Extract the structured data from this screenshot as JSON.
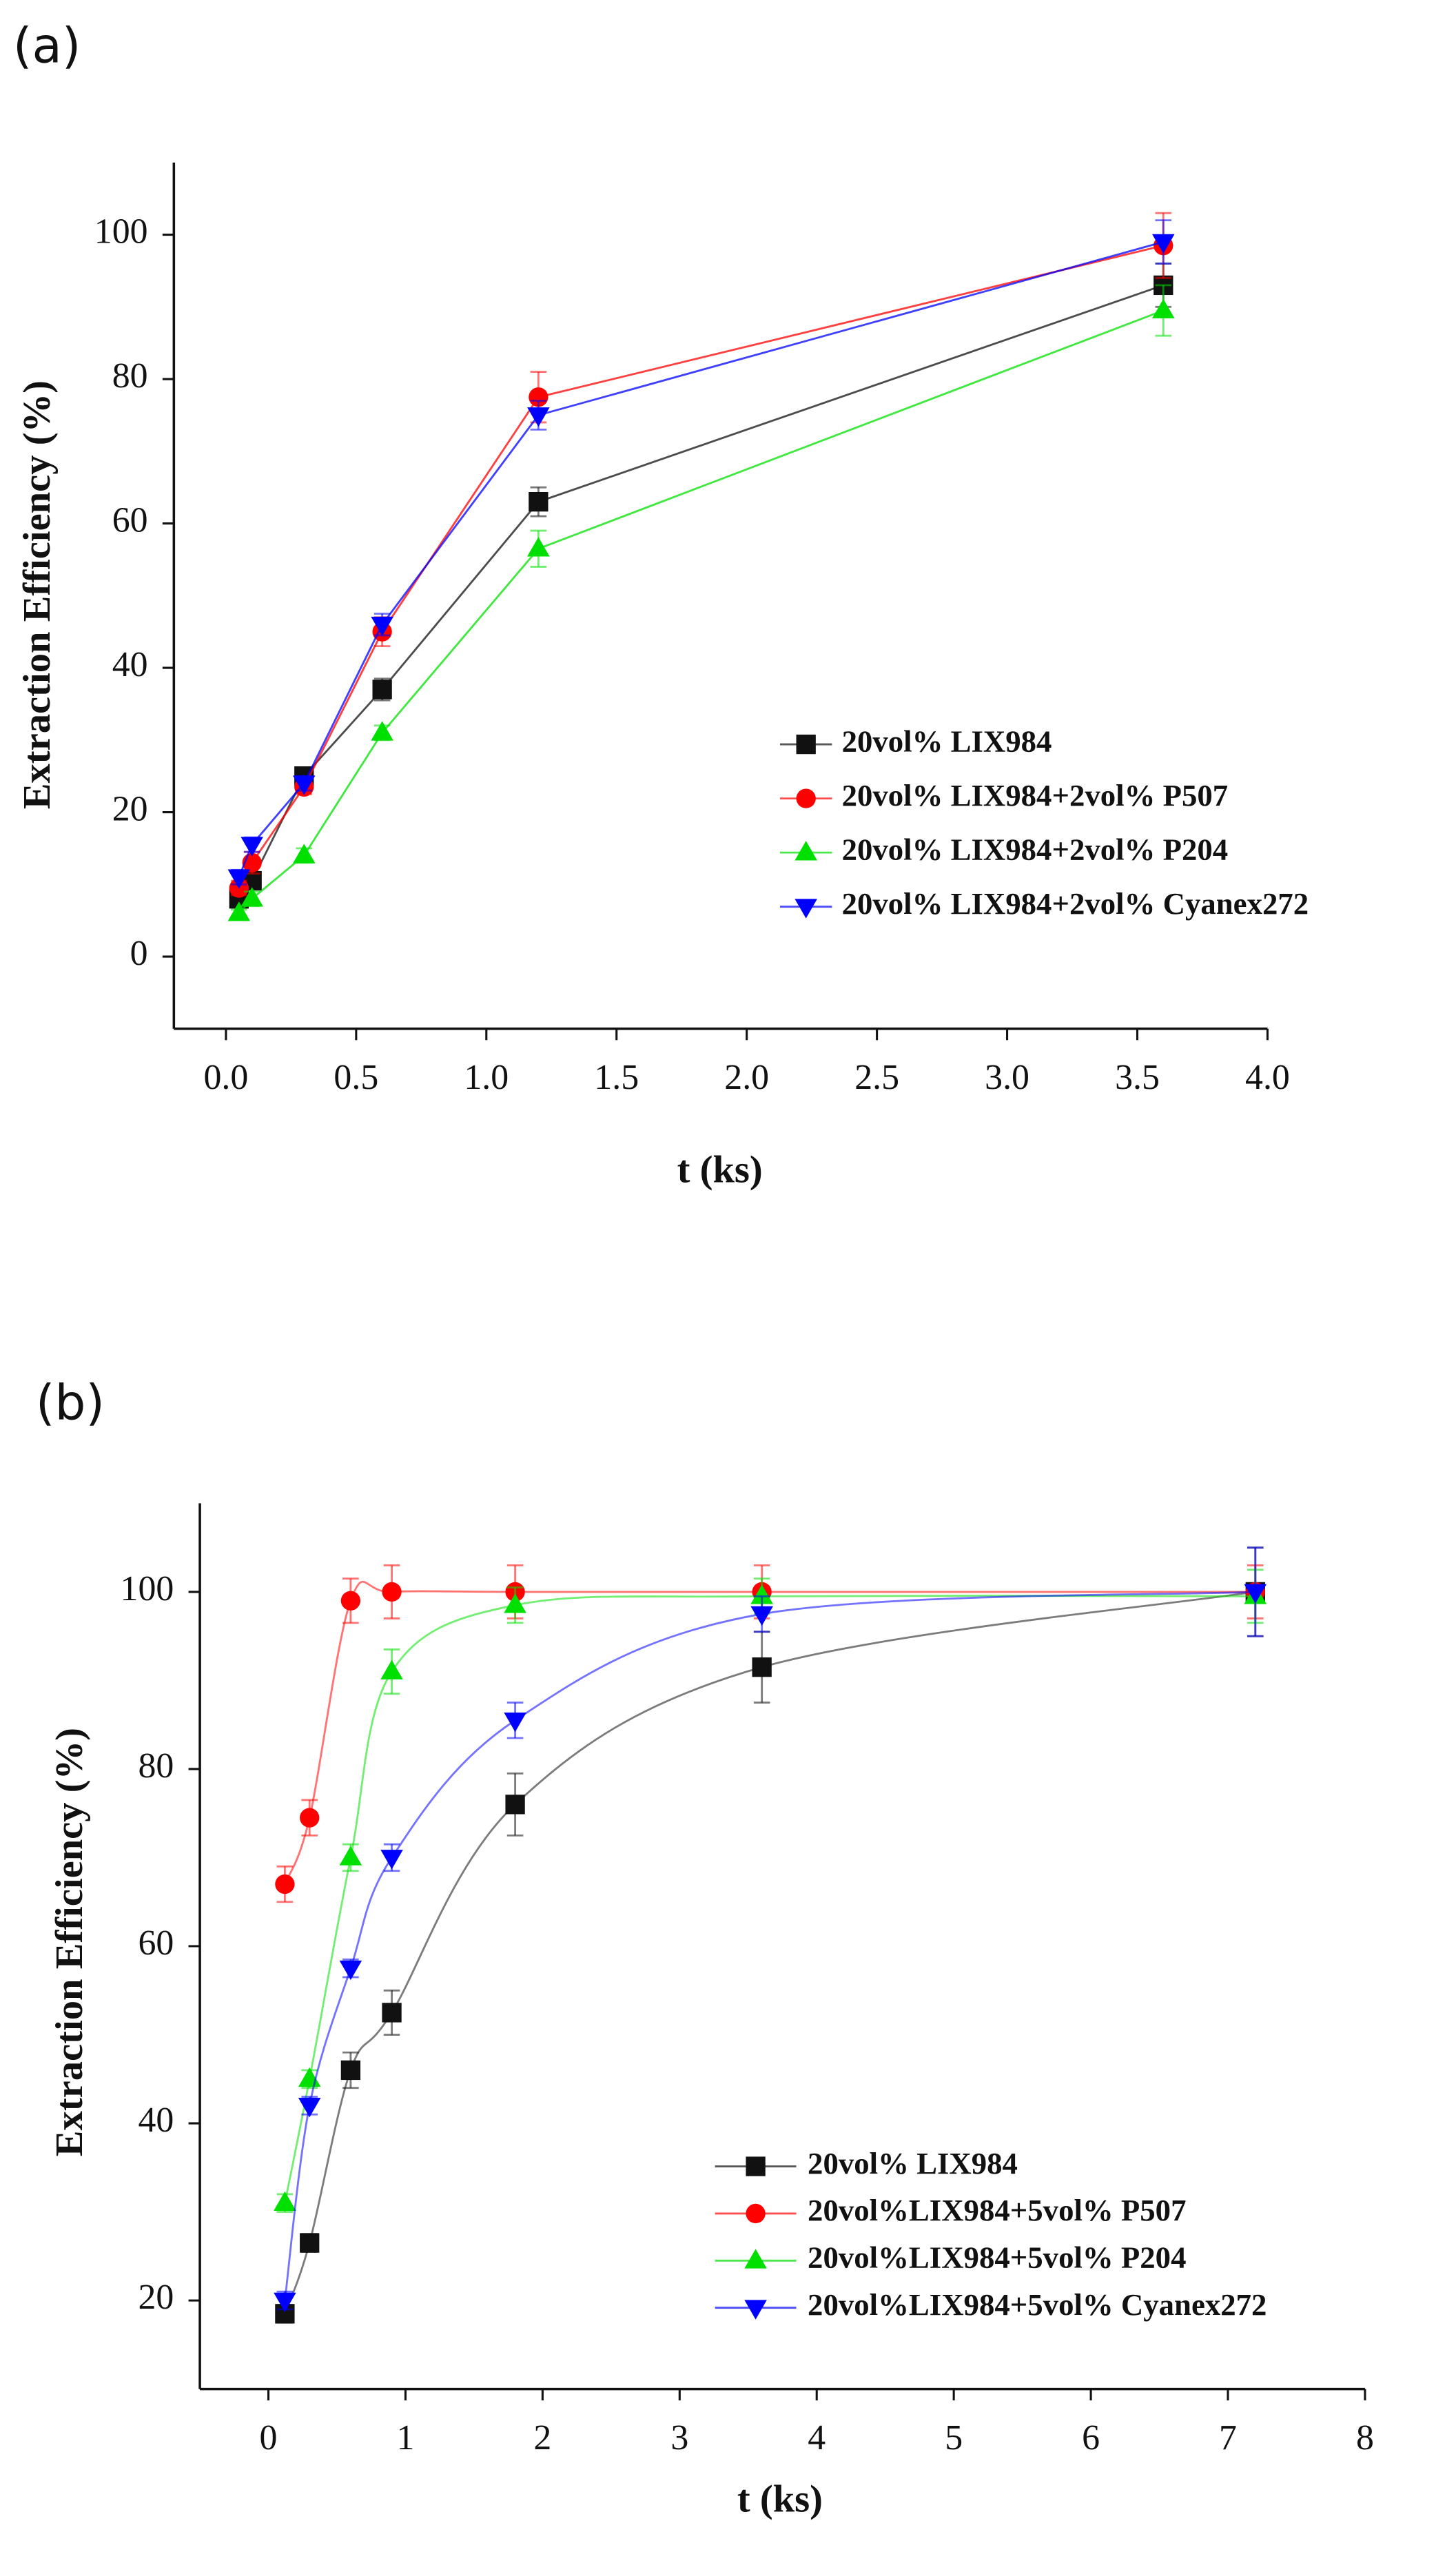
{
  "chart_data": [
    {
      "type": "line",
      "panel_label": "(a)",
      "x_label": "t (ks)",
      "y_label": "Extraction Efficiency (%)",
      "x": [
        0.05,
        0.1,
        0.3,
        0.6,
        1.2,
        3.6
      ],
      "series": [
        {
          "name": "20vol% LIX984",
          "color": "#111111",
          "marker": "square",
          "values": [
            8,
            10.5,
            25,
            37,
            63,
            93
          ],
          "errors": [
            1,
            1,
            1,
            1.5,
            2,
            3
          ]
        },
        {
          "name": "20vol% LIX984+2vol% P507",
          "color": "#ff0000",
          "marker": "circle",
          "values": [
            9.5,
            13,
            23.5,
            45,
            77.5,
            98.5
          ],
          "errors": [
            1,
            1.5,
            1,
            2,
            3.5,
            4.5
          ]
        },
        {
          "name": "20vol% LIX984+2vol% P204",
          "color": "#00e000",
          "marker": "triangle-up",
          "values": [
            6,
            8,
            14,
            31,
            56.5,
            89.5
          ],
          "errors": [
            0.5,
            1,
            1,
            1,
            2.5,
            3.5
          ]
        },
        {
          "name": "20vol% LIX984+2vol% Cyanex272",
          "color": "#0000ff",
          "marker": "triangle-down",
          "values": [
            11,
            15.5,
            24,
            46,
            75,
            99
          ],
          "errors": [
            1,
            1,
            1,
            1.5,
            2,
            3
          ]
        }
      ],
      "xlim": [
        -0.2,
        4.0
      ],
      "xticks": [
        {
          "value": 0,
          "label": "0.0"
        },
        {
          "value": 0.5,
          "label": "0.5"
        },
        {
          "value": 1,
          "label": "1.0"
        },
        {
          "value": 1.5,
          "label": "1.5"
        },
        {
          "value": 2,
          "label": "2.0"
        },
        {
          "value": 2.5,
          "label": "2.5"
        },
        {
          "value": 3,
          "label": "3.0"
        },
        {
          "value": 3.5,
          "label": "3.5"
        },
        {
          "value": 4,
          "label": "4.0"
        }
      ],
      "ylim": [
        -10,
        110
      ],
      "yticks": [
        0,
        20,
        40,
        60,
        80,
        100
      ],
      "smooth": false,
      "legend": "lower right"
    },
    {
      "type": "line",
      "panel_label": "(b)",
      "x_label": "t (ks)",
      "y_label": "Extraction Efficiency (%)",
      "x": [
        0.12,
        0.3,
        0.6,
        0.9,
        1.8,
        3.6,
        7.2
      ],
      "series": [
        {
          "name": "20vol% LIX984",
          "color": "#111111",
          "marker": "square",
          "values": [
            18.5,
            26.5,
            46,
            52.5,
            76,
            91.5,
            100
          ],
          "errors": [
            1,
            1,
            2,
            2.5,
            3.5,
            4,
            5
          ]
        },
        {
          "name": "20vol%LIX984+5vol% P507",
          "color": "#ff0000",
          "marker": "circle",
          "values": [
            67,
            74.5,
            99,
            100,
            100,
            100,
            100
          ],
          "errors": [
            2,
            2,
            2.5,
            3,
            3,
            3,
            3
          ]
        },
        {
          "name": "20vol%LIX984+5vol% P204",
          "color": "#00e000",
          "marker": "triangle-up",
          "values": [
            31,
            45,
            70,
            91,
            98.5,
            99.5,
            99.5
          ],
          "errors": [
            1,
            1,
            1.5,
            2.5,
            2,
            2,
            3
          ]
        },
        {
          "name": "20vol%LIX984+5vol% Cyanex272",
          "color": "#0000ff",
          "marker": "triangle-down",
          "values": [
            20,
            42,
            57.5,
            70,
            85.5,
            97.5,
            100
          ],
          "errors": [
            1,
            1,
            1,
            1.5,
            2,
            2,
            5
          ]
        }
      ],
      "xlim": [
        -0.5,
        8
      ],
      "xticks": [
        0,
        1,
        2,
        3,
        4,
        5,
        6,
        7,
        8
      ],
      "ylim": [
        10,
        110
      ],
      "yticks": [
        20,
        40,
        60,
        80,
        100
      ],
      "smooth": true,
      "legend": "lower right"
    }
  ]
}
